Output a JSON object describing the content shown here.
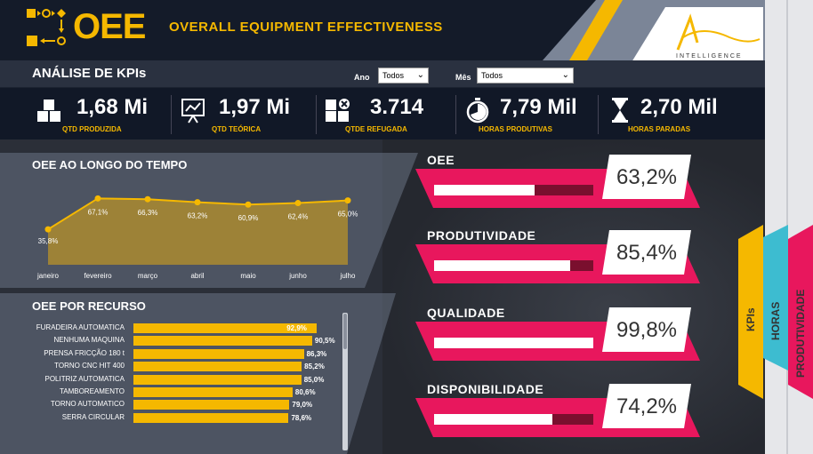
{
  "header": {
    "title": "OEE",
    "subtitle": "OVERALL EQUIPMENT  EFFECTIVENESS",
    "logo_text": "INTELLIGENCE"
  },
  "kpis": {
    "section_title": "ANÁLISE DE KPIs",
    "filters": {
      "year_label": "Ano",
      "year_value": "Todos",
      "month_label": "Mês",
      "month_value": "Todos"
    },
    "cards": [
      {
        "value": "1,68 Mi",
        "label": "QTD PRODUZIDA",
        "icon": "boxes-icon"
      },
      {
        "value": "1,97 Mi",
        "label": "QTD TEÓRICA",
        "icon": "presentation-chart-icon"
      },
      {
        "value": "3.714",
        "label": "QTDE REFUGADA",
        "icon": "rejected-boxes-icon"
      },
      {
        "value": "7,79 Mil",
        "label": "HORAS PRODUTIVAS",
        "icon": "stopwatch-icon"
      },
      {
        "value": "2,70 Mil",
        "label": "HORAS PARADAS",
        "icon": "hourglass-icon"
      }
    ]
  },
  "chart_data": [
    {
      "type": "area",
      "title": "OEE AO LONGO DO TEMPO",
      "categories": [
        "janeiro",
        "fevereiro",
        "março",
        "abril",
        "maio",
        "junho",
        "julho"
      ],
      "values": [
        35.8,
        67.1,
        66.3,
        63.2,
        60.9,
        62.4,
        65.0
      ],
      "labels": [
        "35,8%",
        "67,1%",
        "66,3%",
        "63,2%",
        "60,9%",
        "62,4%",
        "65,0%"
      ],
      "ylim": [
        0,
        100
      ],
      "color": "#f5b800"
    },
    {
      "type": "bar",
      "orientation": "horizontal",
      "title": "OEE POR RECURSO",
      "categories": [
        "FURADEIRA AUTOMATICA",
        "NENHUMA MAQUINA",
        "PRENSA FRICÇÃO 180 t",
        "TORNO CNC HIT 400",
        "POLITRIZ AUTOMATICA",
        "TAMBOREAMENTO",
        "TORNO AUTOMATICO",
        "SERRA CIRCULAR"
      ],
      "values": [
        92.9,
        90.5,
        86.3,
        85.2,
        85.0,
        80.6,
        79.0,
        78.6
      ],
      "labels": [
        "92,9%",
        "90,5%",
        "86,3%",
        "85,2%",
        "85,0%",
        "80,6%",
        "79,0%",
        "78,6%"
      ],
      "color": "#f5b800"
    }
  ],
  "metrics": [
    {
      "title": "OEE",
      "value": "63,2%",
      "fraction": 0.632
    },
    {
      "title": "PRODUTIVIDADE",
      "value": "85,4%",
      "fraction": 0.854
    },
    {
      "title": "QUALIDADE",
      "value": "99,8%",
      "fraction": 0.998
    },
    {
      "title": "DISPONIBILIDADE",
      "value": "74,2%",
      "fraction": 0.742
    }
  ],
  "side_tabs": [
    {
      "label": "KPIs",
      "color": "#f5b800"
    },
    {
      "label": "HORAS",
      "color": "#3dbcd0"
    },
    {
      "label": "PRODUTIVIDADE",
      "color": "#e8175d"
    }
  ],
  "colors": {
    "accent": "#f5b800",
    "pink": "#e8175d",
    "dark": "#141b29"
  }
}
